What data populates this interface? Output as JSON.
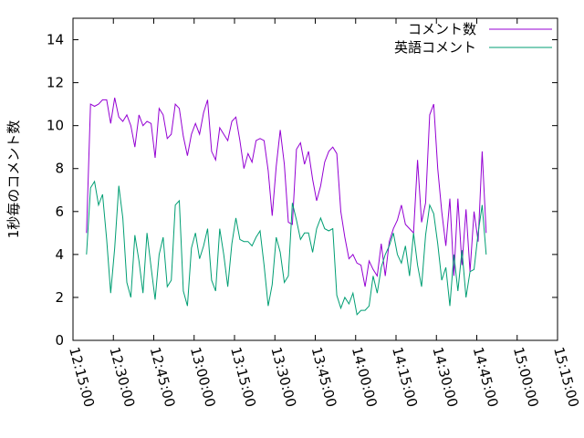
{
  "chart_data": {
    "type": "line",
    "title": "",
    "xlabel": "",
    "ylabel": "1秒毎のコメント数",
    "xlim": [
      "12:15:00",
      "15:15:00"
    ],
    "ylim": [
      0,
      15
    ],
    "x_ticks": [
      "12:15:00",
      "12:30:00",
      "12:45:00",
      "13:00:00",
      "13:15:00",
      "13:30:00",
      "13:45:00",
      "14:00:00",
      "14:15:00",
      "14:30:00",
      "14:45:00",
      "15:00:00",
      "15:15:00"
    ],
    "y_ticks": [
      0,
      2,
      4,
      6,
      8,
      10,
      12,
      14
    ],
    "grid": false,
    "legend_position": "top-right",
    "x_start": "12:20:00",
    "x_step": "00:01:30",
    "series": [
      {
        "name": "コメント数",
        "color": "#9400d3",
        "values": [
          5.0,
          11.0,
          10.9,
          11.0,
          11.2,
          11.2,
          10.1,
          11.3,
          10.4,
          10.2,
          10.5,
          10.0,
          9.0,
          10.5,
          10.0,
          10.2,
          10.1,
          8.5,
          10.8,
          10.5,
          9.4,
          9.6,
          11.0,
          10.8,
          9.5,
          8.6,
          9.6,
          10.1,
          9.6,
          10.6,
          11.2,
          8.8,
          8.4,
          9.9,
          9.6,
          9.3,
          10.2,
          10.4,
          9.3,
          8.0,
          8.7,
          8.3,
          9.3,
          9.4,
          9.3,
          7.9,
          5.8,
          8.1,
          9.8,
          8.2,
          5.5,
          5.4,
          8.9,
          9.2,
          8.2,
          8.8,
          7.5,
          6.5,
          7.2,
          8.3,
          8.8,
          9.0,
          8.7,
          6.0,
          4.8,
          3.8,
          4.0,
          3.6,
          3.5,
          2.5,
          3.7,
          3.3,
          3.0,
          4.5,
          3.0,
          4.6,
          5.2,
          5.6,
          6.3,
          5.4,
          5.2,
          5.0,
          8.4,
          5.5,
          6.4,
          10.5,
          11.0,
          8.0,
          6.0,
          4.4,
          6.6,
          3.0,
          6.6,
          3.5,
          6.1,
          3.2,
          6.0,
          4.6,
          8.8,
          5.0
        ]
      },
      {
        "name": "英語コメント",
        "color": "#009e73",
        "values": [
          4.0,
          7.1,
          7.4,
          6.3,
          6.8,
          4.7,
          2.2,
          4.3,
          7.2,
          5.7,
          2.7,
          2.0,
          4.9,
          3.7,
          2.2,
          5.0,
          3.4,
          1.9,
          4.0,
          4.8,
          2.5,
          2.8,
          6.3,
          6.5,
          2.3,
          1.6,
          4.3,
          5.0,
          3.8,
          4.4,
          5.2,
          2.8,
          2.3,
          5.2,
          4.0,
          2.5,
          4.5,
          5.7,
          4.7,
          4.6,
          4.6,
          4.4,
          4.8,
          5.1,
          3.5,
          1.6,
          2.6,
          4.8,
          4.1,
          2.7,
          3.0,
          6.4,
          5.6,
          4.7,
          5.0,
          5.0,
          4.1,
          5.2,
          5.7,
          5.2,
          5.1,
          5.2,
          2.1,
          1.5,
          2.0,
          1.7,
          2.2,
          1.2,
          1.4,
          1.4,
          1.6,
          3.0,
          2.2,
          3.4,
          4.0,
          4.4,
          5.0,
          4.0,
          3.6,
          4.4,
          3.0,
          5.0,
          3.5,
          2.5,
          4.9,
          6.3,
          5.9,
          4.5,
          2.8,
          3.4,
          1.6,
          4.0,
          2.3,
          4.2,
          2.0,
          3.2,
          3.3,
          5.0,
          6.3,
          4.0
        ]
      }
    ]
  }
}
